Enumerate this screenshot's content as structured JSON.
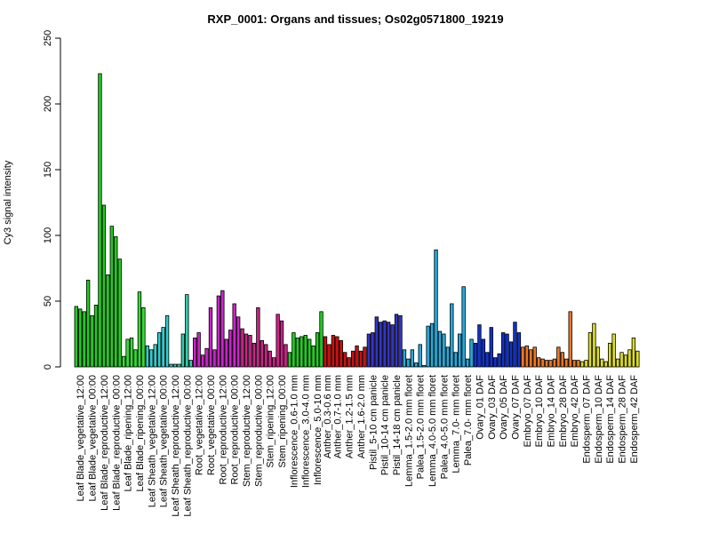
{
  "chart_data": {
    "type": "bar",
    "title": "RXP_0001: Organs and tissues; Os02g0571800_19219",
    "ylabel": "Cy3 signal intensity",
    "xlabel": "",
    "ylim": [
      0,
      250
    ],
    "yticks": [
      0,
      50,
      100,
      150,
      200,
      250
    ],
    "grid": false,
    "groups": [
      {
        "label": "Leaf Blade_vegetative_12:00",
        "color": "#22cc22",
        "values": [
          46,
          44,
          42
        ]
      },
      {
        "label": "Leaf Blade_vegetative_00:00",
        "color": "#22cc22",
        "values": [
          66,
          39,
          47
        ]
      },
      {
        "label": "Leaf Blade_reproductive_12:00",
        "color": "#22cc22",
        "values": [
          223,
          123,
          70
        ]
      },
      {
        "label": "Leaf Blade_reproductive_00:00",
        "color": "#22cc22",
        "values": [
          107,
          99,
          82
        ]
      },
      {
        "label": "Leaf Blade_ripening_12:00",
        "color": "#33dd33",
        "values": [
          8,
          21,
          22
        ]
      },
      {
        "label": "Leaf Blade_ripening_00:00",
        "color": "#33dd33",
        "values": [
          13,
          57,
          45
        ]
      },
      {
        "label": "Leaf Sheath_vegetative_12:00",
        "color": "#33cccc",
        "values": [
          16,
          13,
          17
        ]
      },
      {
        "label": "Leaf Sheath_vegetative_00:00",
        "color": "#33cccc",
        "values": [
          26,
          30,
          39
        ]
      },
      {
        "label": "Leaf Sheath_reproductive_12:00",
        "color": "#33ccaa",
        "values": [
          2,
          2,
          2
        ]
      },
      {
        "label": "Leaf Sheath_reproductive_00:00",
        "color": "#33ccaa",
        "values": [
          25,
          55,
          5
        ]
      },
      {
        "label": "Root_vegetative_12:00",
        "color": "#cc22cc",
        "values": [
          22,
          26,
          9
        ]
      },
      {
        "label": "Root_vegetative_00:00",
        "color": "#cc22cc",
        "values": [
          14,
          45,
          13
        ]
      },
      {
        "label": "Root_reproductive_12:00",
        "color": "#cc22cc",
        "values": [
          54,
          58,
          21
        ]
      },
      {
        "label": "Root_reproductive_00:00",
        "color": "#cc22cc",
        "values": [
          28,
          48,
          38
        ]
      },
      {
        "label": "Stem_reproductive_12:00",
        "color": "#cc2288",
        "values": [
          29,
          25,
          24
        ]
      },
      {
        "label": "Stem_reproductive_00:00",
        "color": "#cc2288",
        "values": [
          18,
          45,
          20
        ]
      },
      {
        "label": "Stem_ripening_12:00",
        "color": "#cc2288",
        "values": [
          17,
          12,
          7
        ]
      },
      {
        "label": "Stem_ripening_00:00",
        "color": "#cc2288",
        "values": [
          40,
          35,
          17
        ]
      },
      {
        "label": "Inflorescence_0.6-1.0 mm",
        "color": "#22cc22",
        "values": [
          11,
          26,
          22
        ]
      },
      {
        "label": "Inflorescence_3.0-4.0 mm",
        "color": "#22cc22",
        "values": [
          23,
          24,
          21
        ]
      },
      {
        "label": "Inflorescence_5.0-10 mm",
        "color": "#22cc22",
        "values": [
          16,
          26,
          42
        ]
      },
      {
        "label": "Anther_0.3-0.6 mm",
        "color": "#cc1111",
        "values": [
          23,
          17
        ]
      },
      {
        "label": "Anther_0.7-1.0 mm",
        "color": "#cc1111",
        "values": [
          24,
          23,
          20
        ]
      },
      {
        "label": "Anther_1.2-1.5 mm",
        "color": "#cc1111",
        "values": [
          11,
          7,
          12
        ]
      },
      {
        "label": "Anther_1.6-2.0 mm",
        "color": "#cc1111",
        "values": [
          16,
          12,
          15
        ]
      },
      {
        "label": "Pistil_5-10 cm panicle",
        "color": "#3333cc",
        "values": [
          25,
          26,
          38
        ]
      },
      {
        "label": "Pistil_10-14 cm panicle",
        "color": "#3333cc",
        "values": [
          34,
          35,
          34
        ]
      },
      {
        "label": "Pistil_14-18 cm panicle",
        "color": "#3333cc",
        "values": [
          32,
          40,
          39
        ]
      },
      {
        "label": "Lemma_1.5-2.0 mm floret",
        "color": "#22aadd",
        "values": [
          13,
          6,
          13
        ]
      },
      {
        "label": "Palea_1.5-2.0 mm floret",
        "color": "#22aadd",
        "values": [
          3,
          17,
          1
        ]
      },
      {
        "label": "Lemma_4.0-5.0 mm floret",
        "color": "#22aadd",
        "values": [
          31,
          33,
          89
        ]
      },
      {
        "label": "Palea_4.0-5.0 mm floret",
        "color": "#22aadd",
        "values": [
          27,
          25,
          15
        ]
      },
      {
        "label": "Lemma_7.0- mm floret",
        "color": "#22aadd",
        "values": [
          48,
          11,
          25
        ]
      },
      {
        "label": "Palea_7.0- mm floret",
        "color": "#22aadd",
        "values": [
          61,
          6,
          21
        ]
      },
      {
        "label": "Ovary_01 DAF",
        "color": "#1133cc",
        "values": [
          18,
          32,
          21
        ]
      },
      {
        "label": "Ovary_03 DAF",
        "color": "#1133cc",
        "values": [
          11,
          30,
          7
        ]
      },
      {
        "label": "Ovary_05 DAF",
        "color": "#1133cc",
        "values": [
          10,
          26,
          25
        ]
      },
      {
        "label": "Ovary_07 DAF",
        "color": "#1133cc",
        "values": [
          19,
          34,
          26
        ]
      },
      {
        "label": "Embryo_07 DAF",
        "color": "#ee7722",
        "values": [
          15,
          16,
          13
        ]
      },
      {
        "label": "Embryo_10 DAF",
        "color": "#ee7722",
        "values": [
          15,
          7,
          6
        ]
      },
      {
        "label": "Embryo_14 DAF",
        "color": "#ee7722",
        "values": [
          5,
          5,
          6
        ]
      },
      {
        "label": "Embryo_28 DAF",
        "color": "#ee7722",
        "values": [
          15,
          11,
          6
        ]
      },
      {
        "label": "Embryo_42 DAF",
        "color": "#ee7722",
        "values": [
          42,
          5,
          5
        ]
      },
      {
        "label": "Endosperm_07 DAF",
        "color": "#dddd22",
        "values": [
          4,
          5,
          26
        ]
      },
      {
        "label": "Endosperm_10 DAF",
        "color": "#dddd22",
        "values": [
          33,
          15,
          6
        ]
      },
      {
        "label": "Endosperm_14 DAF",
        "color": "#dddd22",
        "values": [
          4,
          18,
          25
        ]
      },
      {
        "label": "Endosperm_28 DAF",
        "color": "#dddd22",
        "values": [
          6,
          11,
          9
        ]
      },
      {
        "label": "Endosperm_42 DAF",
        "color": "#dddd22",
        "values": [
          13,
          22,
          12
        ]
      }
    ]
  }
}
